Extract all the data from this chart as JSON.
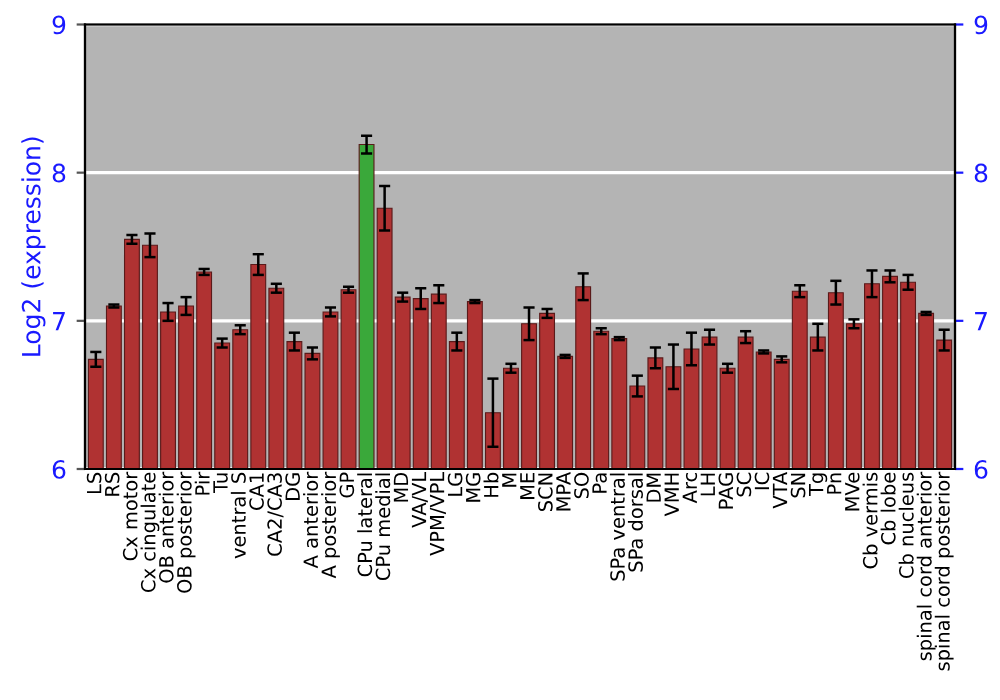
{
  "chart_data": {
    "type": "bar",
    "ylabel": "Log2 (expression)",
    "categories": [
      "LS",
      "RS",
      "Cx motor",
      "Cx cingulate",
      "OB anterior",
      "OB posterior",
      "Pir",
      "Tu",
      "ventral S",
      "CA1",
      "CA2/CA3",
      "DG",
      "A anterior",
      "A posterior",
      "GP",
      "CPu lateral",
      "CPu medial",
      "MD",
      "VA/VL",
      "VPM/VPL",
      "LG",
      "MG",
      "Hb",
      "M",
      "ME",
      "SCN",
      "MPA",
      "SO",
      "Pa",
      "SPa ventral",
      "SPa dorsal",
      "DM",
      "VMH",
      "Arc",
      "LH",
      "PAG",
      "SC",
      "IC",
      "VTA",
      "SN",
      "Tg",
      "Pn",
      "MVe",
      "Cb vermis",
      "Cb lobe",
      "Cb nucleus",
      "spinal cord anterior",
      "spinal cord posterior"
    ],
    "values": [
      6.74,
      7.1,
      7.55,
      7.51,
      7.06,
      7.1,
      7.33,
      6.85,
      6.94,
      7.38,
      7.22,
      6.86,
      6.78,
      7.06,
      7.21,
      8.19,
      7.76,
      7.16,
      7.15,
      7.18,
      6.86,
      7.13,
      6.38,
      6.68,
      6.98,
      7.05,
      6.76,
      7.23,
      6.93,
      6.88,
      6.56,
      6.75,
      6.69,
      6.81,
      6.89,
      6.68,
      6.89,
      6.79,
      6.74,
      7.2,
      6.89,
      7.19,
      6.98,
      7.25,
      7.3,
      7.26,
      7.05,
      6.87
    ],
    "errors": [
      0.05,
      0.01,
      0.03,
      0.08,
      0.06,
      0.06,
      0.02,
      0.03,
      0.03,
      0.07,
      0.03,
      0.06,
      0.04,
      0.03,
      0.02,
      0.06,
      0.15,
      0.03,
      0.07,
      0.06,
      0.06,
      0.01,
      0.23,
      0.03,
      0.11,
      0.03,
      0.01,
      0.09,
      0.02,
      0.01,
      0.07,
      0.07,
      0.15,
      0.11,
      0.05,
      0.03,
      0.04,
      0.01,
      0.02,
      0.04,
      0.09,
      0.08,
      0.03,
      0.09,
      0.04,
      0.05,
      0.01,
      0.07
    ],
    "colors": [
      "#b03232",
      "#b03232",
      "#b03232",
      "#b03232",
      "#b03232",
      "#b03232",
      "#b03232",
      "#b03232",
      "#b03232",
      "#b03232",
      "#b03232",
      "#b03232",
      "#b03232",
      "#b03232",
      "#b03232",
      "#3aa83a",
      "#b03232",
      "#b03232",
      "#b03232",
      "#b03232",
      "#b03232",
      "#b03232",
      "#b03232",
      "#b03232",
      "#b03232",
      "#b03232",
      "#b03232",
      "#b03232",
      "#b03232",
      "#b03232",
      "#b03232",
      "#b03232",
      "#b03232",
      "#b03232",
      "#b03232",
      "#b03232",
      "#b03232",
      "#b03232",
      "#b03232",
      "#b03232",
      "#b03232",
      "#b03232",
      "#b03232",
      "#b03232",
      "#b03232",
      "#b03232",
      "#b03232",
      "#b03232"
    ],
    "ylim": [
      6,
      9
    ],
    "yticks": [
      6,
      7,
      8,
      9
    ],
    "y2lim": [
      6,
      9
    ],
    "y2ticks": [
      6,
      7,
      8,
      9
    ],
    "grid": "y"
  }
}
